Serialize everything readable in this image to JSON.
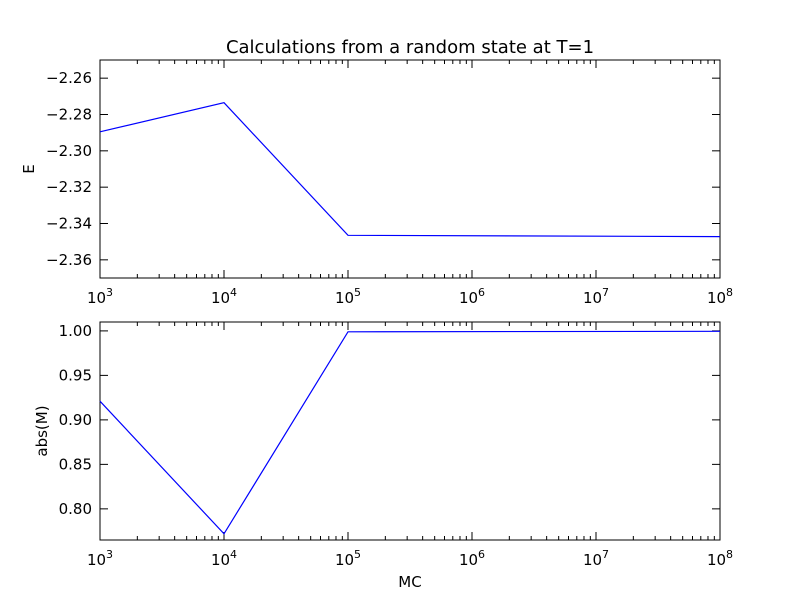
{
  "title": "Calculations from a random state at T=1",
  "colors": {
    "series": "#0000ff",
    "axes": "#000000",
    "background": "#ffffff"
  },
  "chart_data": [
    {
      "type": "line",
      "title": "Calculations from a random state at T=1",
      "xlabel": "",
      "ylabel": "E",
      "xscale": "log",
      "xlim": [
        1000,
        100000000
      ],
      "ylim": [
        -2.37,
        -2.25
      ],
      "yticks": [
        -2.26,
        -2.28,
        -2.3,
        -2.32,
        -2.34,
        -2.36
      ],
      "ytick_labels": [
        "−2.26",
        "−2.28",
        "−2.30",
        "−2.32",
        "−2.34",
        "−2.36"
      ],
      "xticks": [
        1000,
        10000,
        100000,
        1000000,
        10000000,
        100000000
      ],
      "xtick_labels": [
        {
          "base": "10",
          "exp": "3"
        },
        {
          "base": "10",
          "exp": "4"
        },
        {
          "base": "10",
          "exp": "5"
        },
        {
          "base": "10",
          "exp": "6"
        },
        {
          "base": "10",
          "exp": "7"
        },
        {
          "base": "10",
          "exp": "8"
        }
      ],
      "x": [
        1000,
        10000,
        100000,
        100000000
      ],
      "y": [
        -2.2895,
        -2.2735,
        -2.3465,
        -2.3472
      ],
      "grid": false
    },
    {
      "type": "line",
      "xlabel": "MC",
      "ylabel": "abs(M)",
      "xscale": "log",
      "xlim": [
        1000,
        100000000
      ],
      "ylim": [
        0.765,
        1.01
      ],
      "yticks": [
        1.0,
        0.95,
        0.9,
        0.85,
        0.8
      ],
      "ytick_labels": [
        "1.00",
        "0.95",
        "0.90",
        "0.85",
        "0.80"
      ],
      "xticks": [
        1000,
        10000,
        100000,
        1000000,
        10000000,
        100000000
      ],
      "xtick_labels": [
        {
          "base": "10",
          "exp": "3"
        },
        {
          "base": "10",
          "exp": "4"
        },
        {
          "base": "10",
          "exp": "5"
        },
        {
          "base": "10",
          "exp": "6"
        },
        {
          "base": "10",
          "exp": "7"
        },
        {
          "base": "10",
          "exp": "8"
        }
      ],
      "x": [
        1000,
        10000,
        100000,
        100000000
      ],
      "y": [
        0.921,
        0.772,
        0.999,
        0.9995
      ],
      "grid": false
    }
  ]
}
